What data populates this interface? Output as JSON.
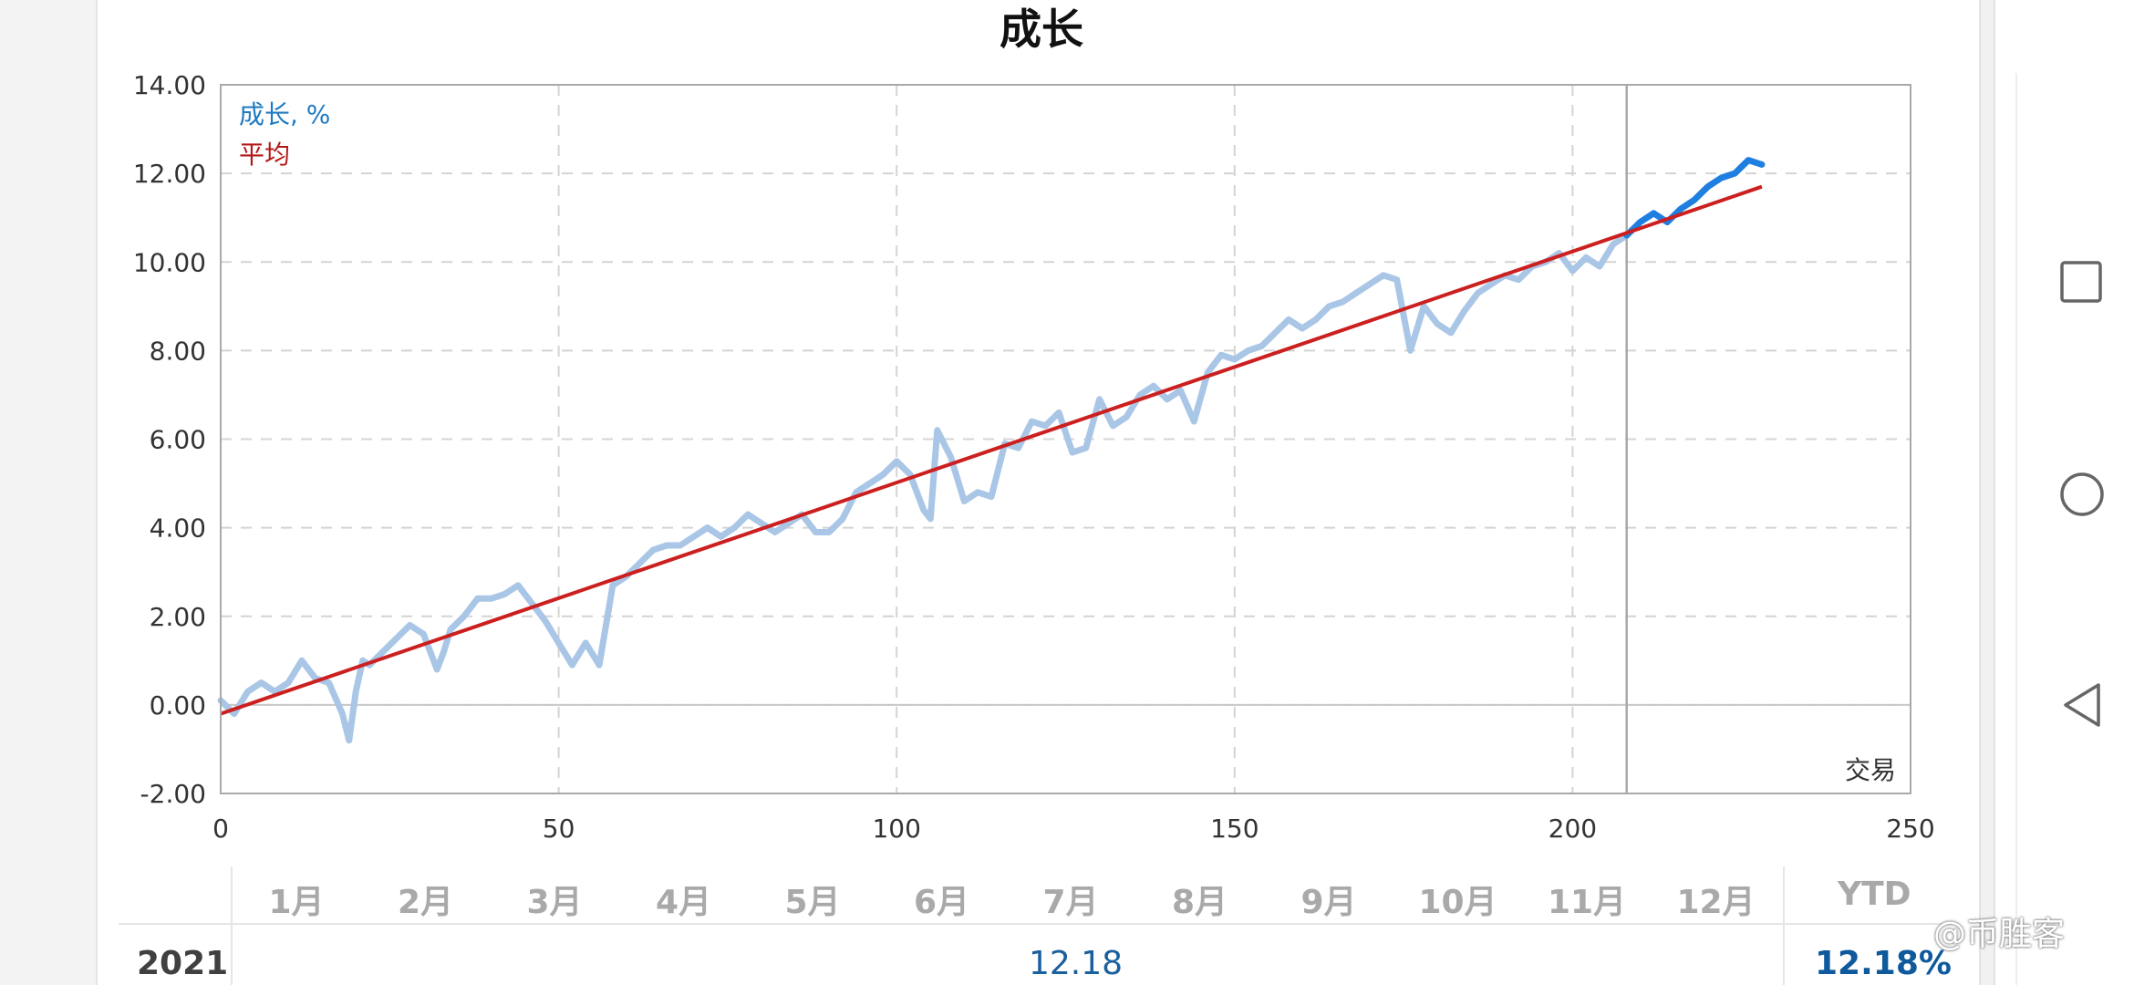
{
  "chart_data": {
    "type": "line",
    "title": "成长",
    "xlim": [
      0,
      250
    ],
    "ylim": [
      -2,
      14
    ],
    "x_ticks": [
      "0",
      "50",
      "100",
      "150",
      "200",
      "250"
    ],
    "y_ticks": [
      "14.00",
      "12.00",
      "10.00",
      "8.00",
      "6.00",
      "4.00",
      "2.00",
      "0.00",
      "-2.00"
    ],
    "xlabel": "交易",
    "legend": {
      "position": "top-left",
      "entries": [
        "成长, %",
        "平均"
      ]
    },
    "grid": true,
    "divider_x": 208,
    "series": [
      {
        "name": "成长, %",
        "color": "#a9c6e6",
        "highlight_color": "#1f7fe0",
        "highlight_from_x": 208,
        "x": [
          0,
          2,
          4,
          6,
          8,
          10,
          12,
          14,
          16,
          18,
          19,
          20,
          21,
          22,
          24,
          26,
          28,
          30,
          32,
          33,
          34,
          36,
          38,
          40,
          42,
          44,
          46,
          48,
          50,
          52,
          54,
          56,
          58,
          60,
          62,
          64,
          66,
          68,
          70,
          72,
          74,
          76,
          78,
          80,
          82,
          84,
          86,
          88,
          90,
          92,
          94,
          96,
          98,
          100,
          102,
          104,
          105,
          106,
          108,
          110,
          112,
          114,
          116,
          118,
          120,
          122,
          124,
          126,
          128,
          130,
          132,
          134,
          136,
          138,
          140,
          142,
          144,
          146,
          148,
          150,
          152,
          154,
          156,
          158,
          160,
          162,
          164,
          166,
          168,
          170,
          172,
          174,
          176,
          178,
          180,
          182,
          184,
          186,
          188,
          190,
          192,
          194,
          196,
          198,
          200,
          202,
          204,
          206,
          208,
          210,
          212,
          214,
          216,
          218,
          220,
          222,
          224,
          226,
          228
        ],
        "y": [
          0.1,
          -0.2,
          0.3,
          0.5,
          0.3,
          0.5,
          1.0,
          0.6,
          0.5,
          -0.2,
          -0.8,
          0.3,
          1.0,
          0.9,
          1.2,
          1.5,
          1.8,
          1.6,
          0.8,
          1.2,
          1.7,
          2.0,
          2.4,
          2.4,
          2.5,
          2.7,
          2.3,
          1.9,
          1.4,
          0.9,
          1.4,
          0.9,
          2.7,
          2.9,
          3.2,
          3.5,
          3.6,
          3.6,
          3.8,
          4.0,
          3.8,
          4.0,
          4.3,
          4.1,
          3.9,
          4.1,
          4.3,
          3.9,
          3.9,
          4.2,
          4.8,
          5.0,
          5.2,
          5.5,
          5.2,
          4.4,
          4.2,
          6.2,
          5.6,
          4.6,
          4.8,
          4.7,
          5.9,
          5.8,
          6.4,
          6.3,
          6.6,
          5.7,
          5.8,
          6.9,
          6.3,
          6.5,
          7.0,
          7.2,
          6.9,
          7.1,
          6.4,
          7.5,
          7.9,
          7.8,
          8.0,
          8.1,
          8.4,
          8.7,
          8.5,
          8.7,
          9.0,
          9.1,
          9.3,
          9.5,
          9.7,
          9.6,
          8.0,
          9.0,
          8.6,
          8.4,
          8.9,
          9.3,
          9.5,
          9.7,
          9.6,
          9.9,
          10.0,
          10.2,
          9.8,
          10.1,
          9.9,
          10.4,
          10.6,
          10.9,
          11.1,
          10.9,
          11.2,
          11.4,
          11.7,
          11.9,
          12.0,
          12.3,
          12.2
        ]
      },
      {
        "name": "平均",
        "color": "#cc1f1f",
        "x": [
          0,
          228
        ],
        "y": [
          -0.2,
          11.7
        ]
      }
    ]
  },
  "table": {
    "months": [
      "1月",
      "2月",
      "3月",
      "4月",
      "5月",
      "6月",
      "7月",
      "8月",
      "9月",
      "10月",
      "11月",
      "12月"
    ],
    "ytd_label": "YTD",
    "rows": [
      {
        "year": "2021",
        "value": "12.18",
        "ytd": "12.18%"
      }
    ]
  },
  "watermark": "@币胜客",
  "nav_icons": [
    "square-icon",
    "circle-icon",
    "triangle-back-icon"
  ]
}
